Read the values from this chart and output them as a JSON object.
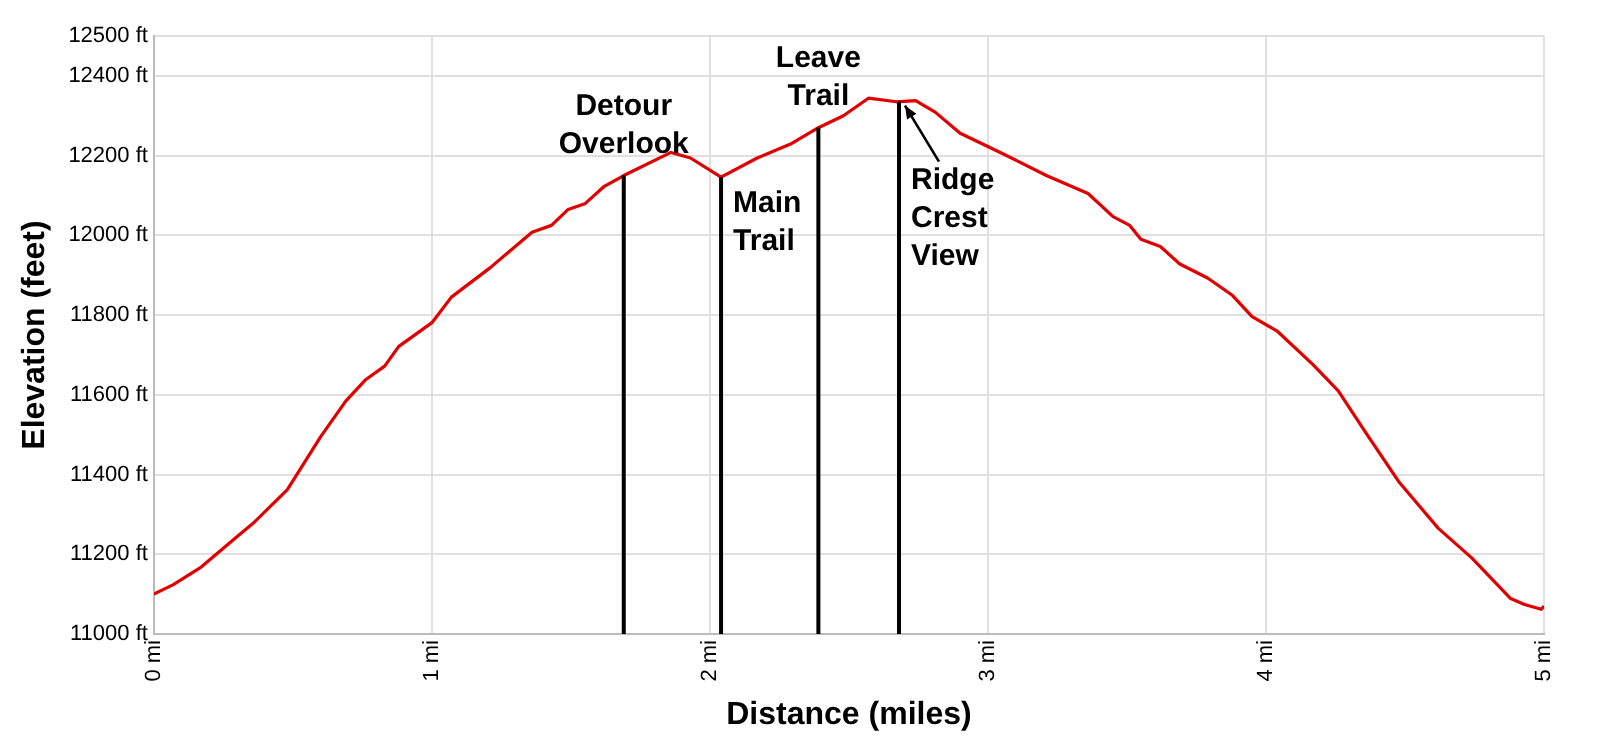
{
  "chart_data": {
    "type": "line",
    "xlabel": "Distance (miles)",
    "ylabel": "Elevation (feet)",
    "x": [
      0,
      0.07,
      0.17,
      0.29,
      0.36,
      0.48,
      0.6,
      0.69,
      0.76,
      0.83,
      0.88,
      1.0,
      1.07,
      1.21,
      1.36,
      1.43,
      1.49,
      1.55,
      1.62,
      1.69,
      1.86,
      1.93,
      2.04,
      2.17,
      2.29,
      2.39,
      2.48,
      2.57,
      2.67,
      2.74,
      2.81,
      2.9,
      3.05,
      3.21,
      3.36,
      3.45,
      3.51,
      3.55,
      3.62,
      3.69,
      3.79,
      3.88,
      3.95,
      4.04,
      4.17,
      4.26,
      4.36,
      4.48,
      4.62,
      4.74,
      4.88,
      4.93,
      4.99,
      5.0
    ],
    "series": [
      {
        "color": "#e00000",
        "values": [
          11100,
          11124,
          11168,
          11239,
          11280,
          11362,
          11495,
          11584,
          11637,
          11672,
          11721,
          11781,
          11845,
          11919,
          12008,
          12025,
          12065,
          12079,
          12123,
          12150,
          12208,
          12194,
          12146,
          12194,
          12229,
          12270,
          12300,
          12344,
          12335,
          12338,
          12309,
          12256,
          12206,
          12150,
          12105,
          12047,
          12025,
          11990,
          11972,
          11928,
          11893,
          11849,
          11796,
          11760,
          11675,
          11610,
          11504,
          11380,
          11265,
          11191,
          11089,
          11074,
          11062,
          11070
        ]
      }
    ],
    "xlim": [
      0,
      5
    ],
    "xticks": [
      {
        "value": 0,
        "label": "0 mi"
      },
      {
        "value": 1,
        "label": "1 mi"
      },
      {
        "value": 2,
        "label": "2 mi"
      },
      {
        "value": 3,
        "label": "3 mi"
      },
      {
        "value": 4,
        "label": "4 mi"
      },
      {
        "value": 5,
        "label": "5 mi"
      }
    ],
    "ylim": [
      11000,
      12500
    ],
    "yticks": [
      {
        "value": 11000,
        "label": "11000 ft"
      },
      {
        "value": 11200,
        "label": "11200 ft"
      },
      {
        "value": 11400,
        "label": "11400 ft"
      },
      {
        "value": 11600,
        "label": "11600 ft"
      },
      {
        "value": 11800,
        "label": "11800 ft"
      },
      {
        "value": 12000,
        "label": "12000 ft"
      },
      {
        "value": 12200,
        "label": "12200 ft"
      },
      {
        "value": 12400,
        "label": "12400 ft"
      },
      {
        "value": 12500,
        "label": "12500 ft"
      }
    ],
    "ref_lines": [
      {
        "axis": "x",
        "value": 1.69,
        "label": "Detour Overlook",
        "color": "#000000"
      },
      {
        "axis": "x",
        "value": 2.04,
        "label": "Main Trail",
        "color": "#000000"
      },
      {
        "axis": "x",
        "value": 2.39,
        "label": "Leave Trail",
        "color": "#000000"
      },
      {
        "axis": "x",
        "value": 2.68,
        "label": "Ridge Crest View",
        "color": "#000000"
      }
    ],
    "grid": true,
    "legend": false,
    "marker": "none",
    "line_style": "solid"
  }
}
